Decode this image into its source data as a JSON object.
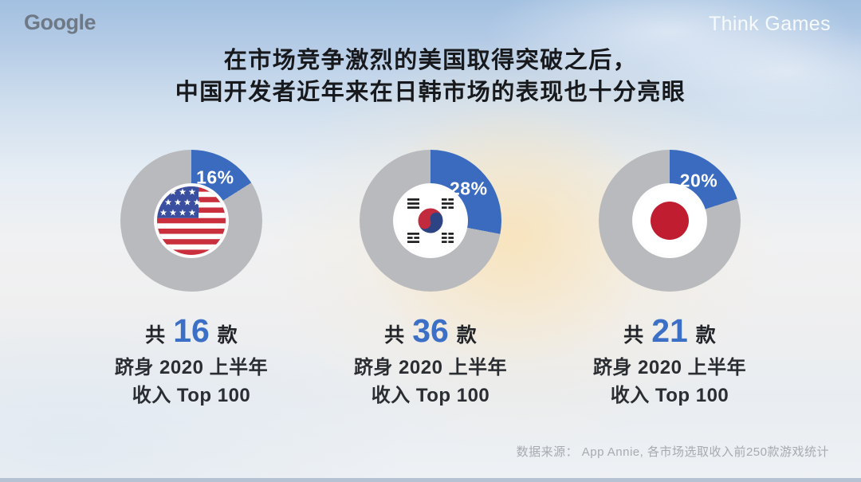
{
  "header": {
    "logo": "Google",
    "program": "Think Games"
  },
  "title": {
    "line1": "在市场竞争激烈的美国取得突破之后，",
    "line2": "中国开发者近年来在日韩市场的表现也十分亮眼"
  },
  "chart_data": {
    "type": "pie",
    "subtype": "donut",
    "unit": "%",
    "legend": "none",
    "description": "Share of Chinese-developed games among each market's H1 2020 Top 100 revenue games",
    "colors": {
      "highlight_slice": "#3a6bbf",
      "remainder_slice": "#b8babd",
      "accent_number": "#3c70c6"
    },
    "charts": [
      {
        "market": "United States",
        "flag_icon": "us-flag-icon",
        "percent": 16,
        "remainder": 84,
        "percent_label": "16%",
        "count": "16",
        "count_label_prefix": "共",
        "count_label_suffix": "款",
        "caption_line2": "跻身 2020 上半年",
        "caption_line3": "收入 Top 100"
      },
      {
        "market": "South Korea",
        "flag_icon": "south-korea-flag-icon",
        "percent": 28,
        "remainder": 72,
        "percent_label": "28%",
        "count": "36",
        "count_label_prefix": "共",
        "count_label_suffix": "款",
        "caption_line2": "跻身 2020 上半年",
        "caption_line3": "收入 Top 100"
      },
      {
        "market": "Japan",
        "flag_icon": "japan-flag-icon",
        "percent": 20,
        "remainder": 80,
        "percent_label": "20%",
        "count": "21",
        "count_label_prefix": "共",
        "count_label_suffix": "款",
        "caption_line2": "跻身 2020 上半年",
        "caption_line3": "收入 Top 100"
      }
    ]
  },
  "footer": {
    "source": "数据来源： App Annie, 各市场选取收入前250款游戏统计"
  }
}
